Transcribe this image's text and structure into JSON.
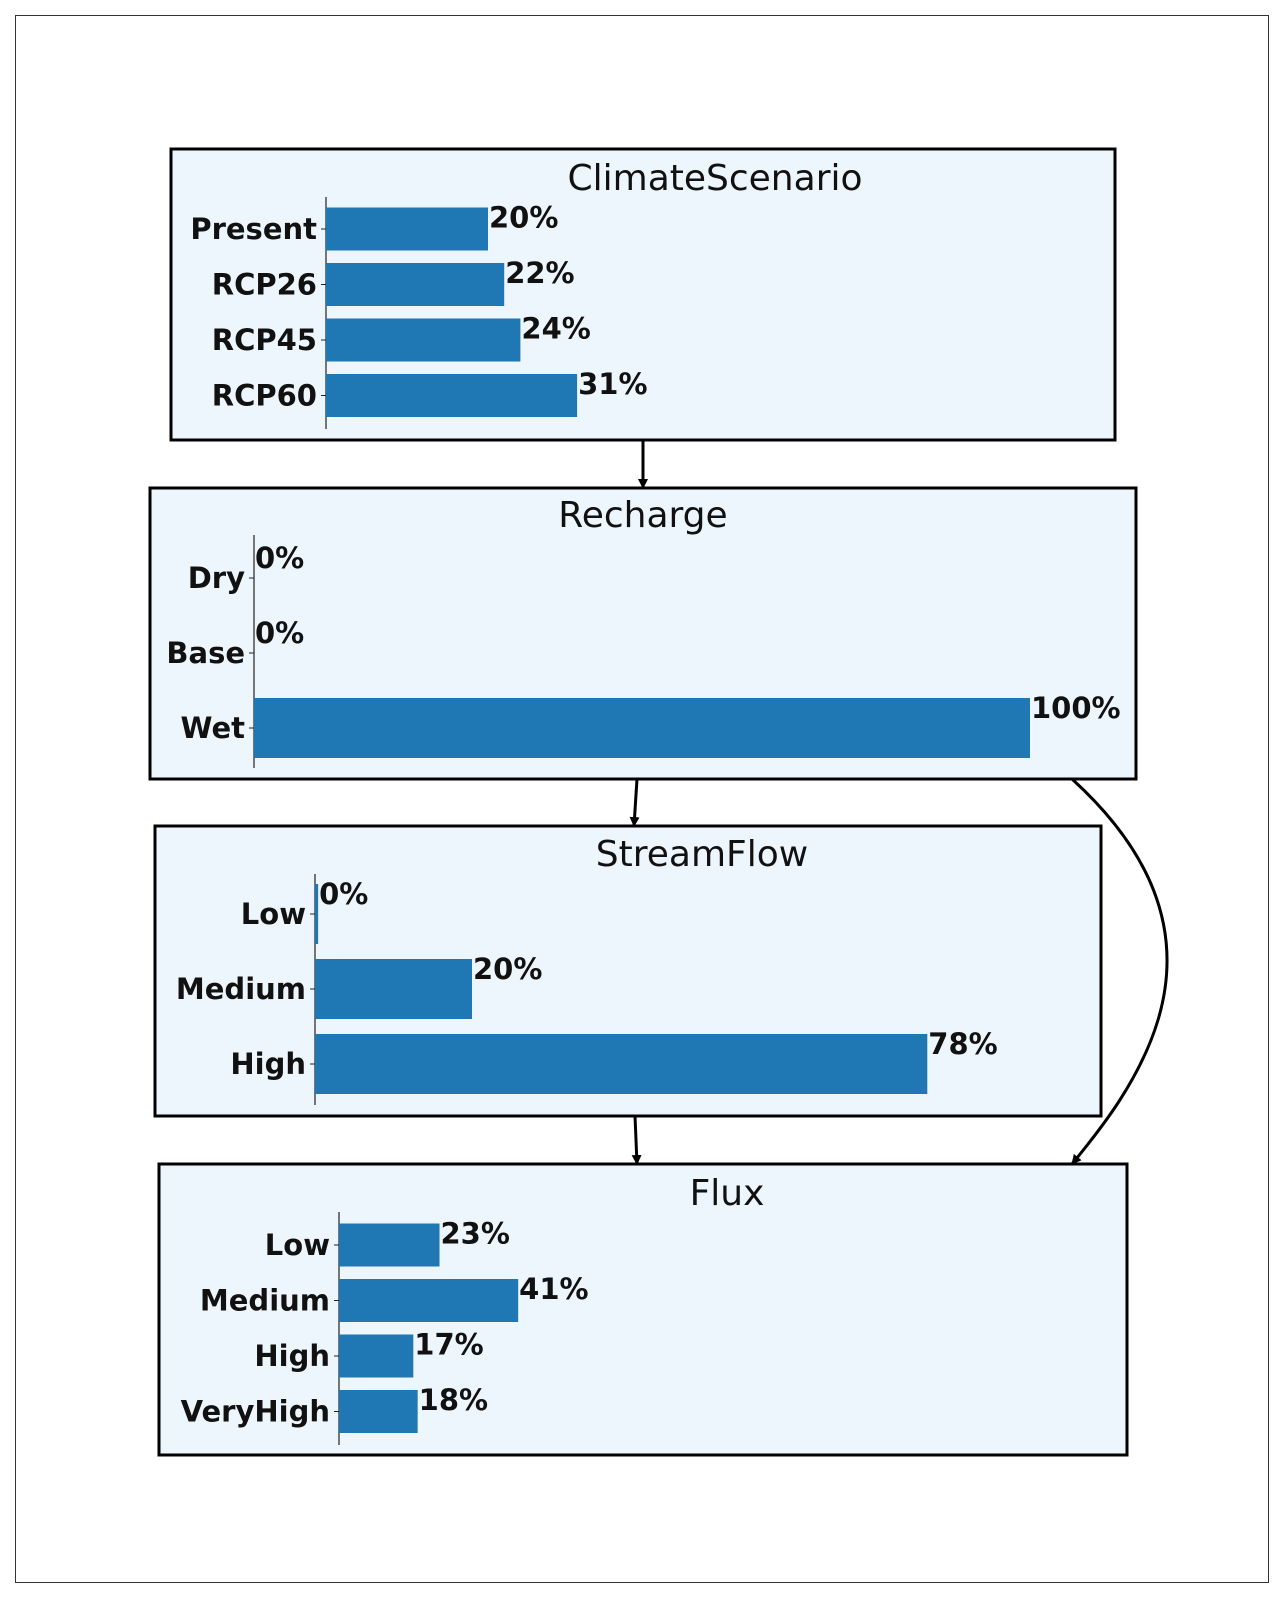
{
  "colors": {
    "node_fill": "#eef6fd",
    "node_border": "#000000",
    "bar": "#1f77b4",
    "text": "#111111",
    "edge": "#000000"
  },
  "nodes": [
    {
      "id": "climate",
      "title": "ClimateScenario",
      "states": [
        {
          "label": "Present",
          "value": 20,
          "display": "20%"
        },
        {
          "label": "RCP26",
          "value": 22,
          "display": "22%"
        },
        {
          "label": "RCP45",
          "value": 24,
          "display": "24%"
        },
        {
          "label": "RCP60",
          "value": 31,
          "display": "31%"
        }
      ]
    },
    {
      "id": "recharge",
      "title": "Recharge",
      "states": [
        {
          "label": "Dry",
          "value": 0,
          "display": "0%"
        },
        {
          "label": "Base",
          "value": 0,
          "display": "0%"
        },
        {
          "label": "Wet",
          "value": 100,
          "display": "100%"
        }
      ]
    },
    {
      "id": "streamflow",
      "title": "StreamFlow",
      "states": [
        {
          "label": "Low",
          "value": 0.4,
          "display": "0%"
        },
        {
          "label": "Medium",
          "value": 20,
          "display": "20%"
        },
        {
          "label": "High",
          "value": 78,
          "display": "78%"
        }
      ]
    },
    {
      "id": "flux",
      "title": "Flux",
      "states": [
        {
          "label": "Low",
          "value": 23,
          "display": "23%"
        },
        {
          "label": "Medium",
          "value": 41,
          "display": "41%"
        },
        {
          "label": "High",
          "value": 17,
          "display": "17%"
        },
        {
          "label": "VeryHigh",
          "value": 18,
          "display": "18%"
        }
      ]
    }
  ],
  "edges": [
    {
      "from": "climate",
      "to": "recharge"
    },
    {
      "from": "recharge",
      "to": "streamflow"
    },
    {
      "from": "recharge",
      "to": "flux"
    },
    {
      "from": "streamflow",
      "to": "flux"
    }
  ]
}
